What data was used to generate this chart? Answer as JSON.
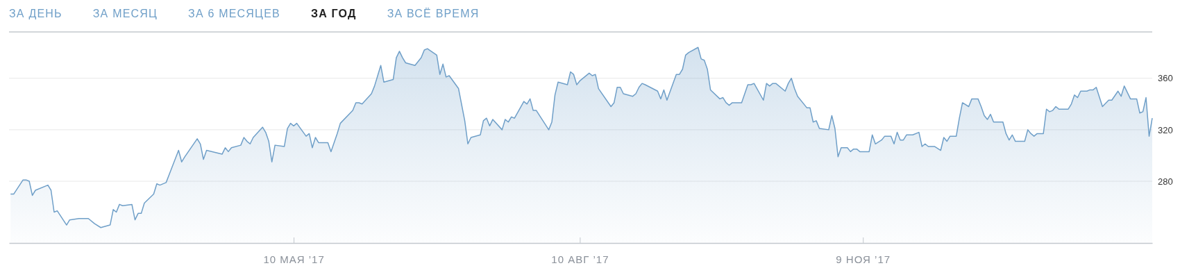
{
  "chart_data": {
    "type": "area",
    "title": "ЗА ГОД",
    "annotations": [
      "ЗА ДЕНЬ",
      "ЗА МЕСЯЦ",
      "ЗА 6 МЕСЯЦЕВ",
      "ЗА ВСЁ ВРЕМЯ"
    ],
    "xlim": [
      "2017-02-07T12:00",
      "2018-02-10"
    ],
    "xticks": [
      {
        "value": "2017-05-10",
        "label": "10 МАЯ ’17"
      },
      {
        "value": "2017-08-10",
        "label": "10 АВГ ’17"
      },
      {
        "value": "2017-11-09",
        "label": "9 НОЯ ’17"
      }
    ],
    "ylim": [
      232,
      396
    ],
    "yticks": [
      280,
      320,
      360
    ],
    "grid": "y",
    "series": [
      {
        "color": "#6f9fc8",
        "x": [
          "2017-02-08",
          "2017-02-09",
          "2017-02-12",
          "2017-02-13",
          "2017-02-14",
          "2017-02-15",
          "2017-02-16",
          "2017-02-20",
          "2017-02-21",
          "2017-02-22",
          "2017-02-23",
          "2017-02-26",
          "2017-02-27",
          "2017-03-02",
          "2017-03-05",
          "2017-03-07",
          "2017-03-09",
          "2017-03-12",
          "2017-03-13",
          "2017-03-14",
          "2017-03-15",
          "2017-03-16",
          "2017-03-19",
          "2017-03-20",
          "2017-03-21",
          "2017-03-22",
          "2017-03-23",
          "2017-03-26",
          "2017-03-27",
          "2017-03-28",
          "2017-03-30",
          "2017-04-03",
          "2017-04-04",
          "2017-04-05",
          "2017-04-09",
          "2017-04-10",
          "2017-04-11",
          "2017-04-12",
          "2017-04-17",
          "2017-04-18",
          "2017-04-19",
          "2017-04-20",
          "2017-04-23",
          "2017-04-24",
          "2017-04-25",
          "2017-04-26",
          "2017-04-27",
          "2017-04-30",
          "2017-05-01",
          "2017-05-02",
          "2017-05-03",
          "2017-05-04",
          "2017-05-07",
          "2017-05-08",
          "2017-05-09",
          "2017-05-10",
          "2017-05-11",
          "2017-05-14",
          "2017-05-15",
          "2017-05-16",
          "2017-05-17",
          "2017-05-18",
          "2017-05-21",
          "2017-05-22",
          "2017-05-23",
          "2017-05-24",
          "2017-05-25",
          "2017-05-29",
          "2017-05-30",
          "2017-05-31",
          "2017-06-01",
          "2017-06-04",
          "2017-06-05",
          "2017-06-07",
          "2017-06-08",
          "2017-06-11",
          "2017-06-12",
          "2017-06-13",
          "2017-06-14",
          "2017-06-15",
          "2017-06-18",
          "2017-06-20",
          "2017-06-21",
          "2017-06-22",
          "2017-06-25",
          "2017-06-26",
          "2017-06-27",
          "2017-06-28",
          "2017-06-29",
          "2017-07-02",
          "2017-07-04",
          "2017-07-05",
          "2017-07-06",
          "2017-07-09",
          "2017-07-10",
          "2017-07-11",
          "2017-07-12",
          "2017-07-13",
          "2017-07-16",
          "2017-07-17",
          "2017-07-18",
          "2017-07-19",
          "2017-07-20",
          "2017-07-23",
          "2017-07-24",
          "2017-07-25",
          "2017-07-26",
          "2017-07-27",
          "2017-07-31",
          "2017-08-01",
          "2017-08-02",
          "2017-08-03",
          "2017-08-06",
          "2017-08-07",
          "2017-08-08",
          "2017-08-09",
          "2017-08-10",
          "2017-08-13",
          "2017-08-14",
          "2017-08-15",
          "2017-08-16",
          "2017-08-20",
          "2017-08-21",
          "2017-08-22",
          "2017-08-23",
          "2017-08-24",
          "2017-08-27",
          "2017-08-28",
          "2017-08-29",
          "2017-08-30",
          "2017-08-31",
          "2017-09-04",
          "2017-09-05",
          "2017-09-06",
          "2017-09-07",
          "2017-09-10",
          "2017-09-11",
          "2017-09-12",
          "2017-09-13",
          "2017-09-14",
          "2017-09-17",
          "2017-09-18",
          "2017-09-19",
          "2017-09-20",
          "2017-09-21",
          "2017-09-24",
          "2017-09-25",
          "2017-09-26",
          "2017-09-27",
          "2017-09-28",
          "2017-10-01",
          "2017-10-03",
          "2017-10-04",
          "2017-10-05",
          "2017-10-08",
          "2017-10-09",
          "2017-10-10",
          "2017-10-11",
          "2017-10-12",
          "2017-10-15",
          "2017-10-16",
          "2017-10-17",
          "2017-10-18",
          "2017-10-19",
          "2017-10-22",
          "2017-10-23",
          "2017-10-24",
          "2017-10-25",
          "2017-10-26",
          "2017-10-29",
          "2017-10-30",
          "2017-10-31",
          "2017-11-01",
          "2017-11-02",
          "2017-11-04",
          "2017-11-05",
          "2017-11-06",
          "2017-11-07",
          "2017-11-08",
          "2017-11-11",
          "2017-11-12",
          "2017-11-13",
          "2017-11-15",
          "2017-11-16",
          "2017-11-18",
          "2017-11-19",
          "2017-11-20",
          "2017-11-21",
          "2017-11-22",
          "2017-11-23",
          "2017-11-25",
          "2017-11-27",
          "2017-11-28",
          "2017-11-29",
          "2017-11-30",
          "2017-12-02",
          "2017-12-04",
          "2017-12-05",
          "2017-12-06",
          "2017-12-07",
          "2017-12-09",
          "2017-12-10",
          "2017-12-11",
          "2017-12-13",
          "2017-12-14",
          "2017-12-16",
          "2017-12-17",
          "2017-12-18",
          "2017-12-19",
          "2017-12-20",
          "2017-12-21",
          "2017-12-24",
          "2017-12-25",
          "2017-12-26",
          "2017-12-27",
          "2017-12-28",
          "2017-12-31",
          "2018-01-01",
          "2018-01-02",
          "2018-01-03",
          "2018-01-04",
          "2018-01-06",
          "2018-01-07",
          "2018-01-08",
          "2018-01-09",
          "2018-01-10",
          "2018-01-11",
          "2018-01-14",
          "2018-01-15",
          "2018-01-16",
          "2018-01-17",
          "2018-01-18",
          "2018-01-20",
          "2018-01-21",
          "2018-01-22",
          "2018-01-23",
          "2018-01-25",
          "2018-01-27",
          "2018-01-28",
          "2018-01-30",
          "2018-01-31",
          "2018-02-01",
          "2018-02-03",
          "2018-02-05",
          "2018-02-06",
          "2018-02-07",
          "2018-02-08",
          "2018-02-09",
          "2018-02-10"
        ],
        "values": [
          270,
          270,
          281,
          281,
          280,
          269,
          273,
          277,
          273,
          256,
          257,
          246,
          250,
          251,
          251,
          247,
          244,
          246,
          258,
          256,
          262,
          261,
          262,
          250,
          255,
          255,
          263,
          270,
          278,
          277,
          279,
          304,
          295,
          299,
          313,
          309,
          297,
          304,
          301,
          306,
          303,
          306,
          308,
          314,
          311,
          309,
          314,
          322,
          318,
          311,
          295,
          308,
          307,
          321,
          325,
          323,
          325,
          315,
          317,
          306,
          314,
          310,
          310,
          303,
          310,
          317,
          325,
          335,
          341,
          341,
          340,
          348,
          354,
          370,
          357,
          359,
          376,
          381,
          376,
          372,
          370,
          376,
          382,
          383,
          378,
          363,
          371,
          361,
          362,
          352,
          327,
          309,
          314,
          316,
          327,
          329,
          323,
          328,
          320,
          328,
          326,
          330,
          329,
          342,
          340,
          344,
          335,
          335,
          320,
          326,
          347,
          357,
          355,
          365,
          363,
          355,
          358,
          364,
          362,
          363,
          352,
          338,
          341,
          353,
          353,
          348,
          346,
          348,
          353,
          356,
          355,
          350,
          344,
          351,
          343,
          363,
          363,
          367,
          378,
          380,
          384,
          375,
          374,
          367,
          351,
          344,
          345,
          341,
          339,
          341,
          341,
          355,
          355,
          356,
          343,
          356,
          354,
          356,
          356,
          350,
          356,
          360,
          352,
          346,
          337,
          337,
          326,
          327,
          321,
          320,
          331,
          321,
          299,
          306,
          306,
          303,
          305,
          305,
          303,
          303,
          316,
          309,
          312,
          315,
          315,
          309,
          318,
          312,
          312,
          316,
          316,
          318,
          307,
          309,
          307,
          307,
          304,
          314,
          311,
          315,
          315,
          329,
          341,
          338,
          344,
          344,
          338,
          331,
          328,
          332,
          326,
          326,
          317,
          312,
          316,
          311,
          311,
          320,
          317,
          315,
          317,
          317,
          336,
          334,
          335,
          338,
          336,
          336,
          340,
          347,
          345,
          350,
          350,
          351,
          351,
          353,
          338,
          343,
          343,
          350,
          346,
          354,
          344,
          344,
          333,
          334,
          345,
          315,
          329
        ]
      }
    ]
  }
}
